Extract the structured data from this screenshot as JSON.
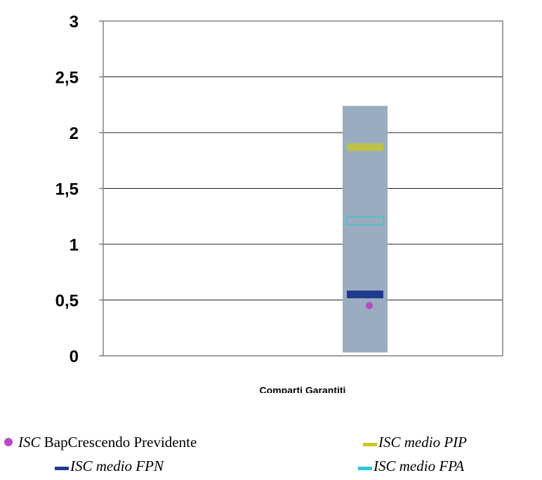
{
  "chart_data": {
    "type": "range-bar",
    "xlabel": "Comparti Garantiti",
    "ylim": [
      0,
      3
    ],
    "yticks": [
      "0",
      "0,5",
      "1",
      "1,5",
      "2",
      "2,5",
      "3"
    ],
    "ytick_values": [
      0,
      0.5,
      1,
      1.5,
      2,
      2.5,
      3
    ],
    "range_bar": {
      "min": 0.03,
      "max": 2.24,
      "color": "#9aacc0"
    },
    "series": [
      {
        "name_prefix": "ISC",
        "name_rest": " BapCrescendo Previdente",
        "marker": "dot",
        "value": 0.45,
        "color": "#b84ac2"
      },
      {
        "name_prefix": "ISC medio PIP",
        "name_rest": "",
        "marker": "bar",
        "value": 1.87,
        "color": "#c8c820"
      },
      {
        "name_prefix": "ISC medio FPN",
        "name_rest": "",
        "marker": "bar",
        "value": 0.55,
        "color": "#1f3a8a"
      },
      {
        "name_prefix": "ISC medio FPA",
        "name_rest": "",
        "marker": "bar",
        "value": 1.21,
        "color": "#2cc6d6"
      }
    ]
  }
}
